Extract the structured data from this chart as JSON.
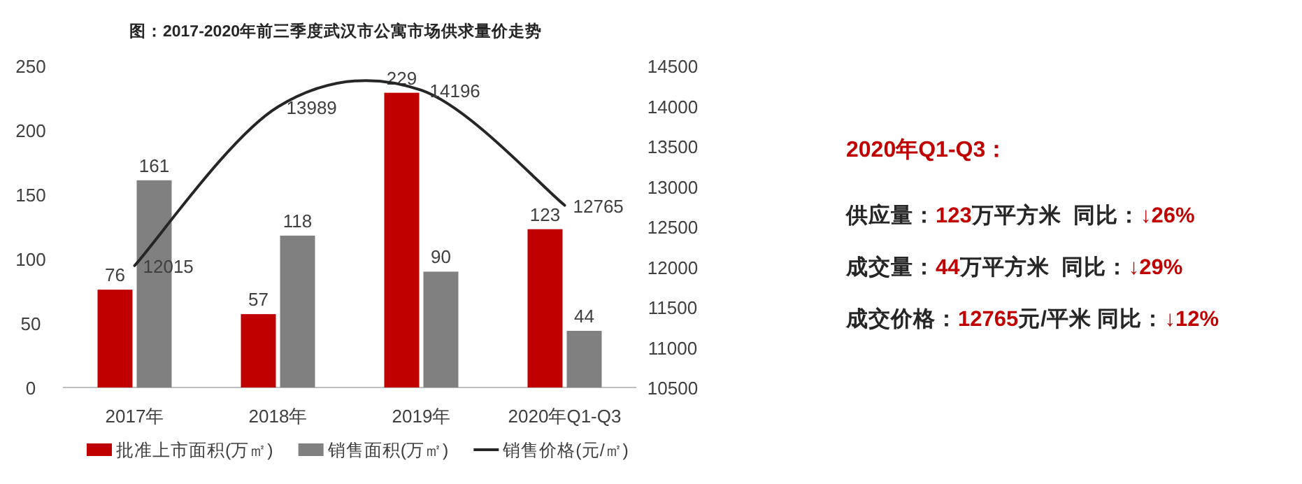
{
  "chart_data": [
    {
      "type": "bar",
      "title": "图：2017-2020年前三季度武汉市公寓市场供求量价走势",
      "categories": [
        "2017年",
        "2018年",
        "2019年",
        "2020年Q1-Q3"
      ],
      "series": [
        {
          "name": "批准上市面积(万㎡)",
          "color": "#c00000",
          "values": [
            76,
            57,
            229,
            123
          ]
        },
        {
          "name": "销售面积(万㎡)",
          "color": "#808080",
          "values": [
            161,
            118,
            90,
            44
          ]
        },
        {
          "name": "销售价格(元/㎡)",
          "type": "line",
          "axis": "y2",
          "color": "#262626",
          "values": [
            12015,
            13989,
            14196,
            12765
          ]
        }
      ],
      "ylim": [
        0,
        250
      ],
      "yticks": [
        0,
        50,
        100,
        150,
        200,
        250
      ],
      "y2lim": [
        10500,
        14500
      ],
      "y2ticks": [
        10500,
        11000,
        11500,
        12000,
        12500,
        13000,
        13500,
        14000,
        14500
      ],
      "data_labels": true,
      "legend": "bottom",
      "grid": false
    },
    {
      "type": "other",
      "title": "2020年Q1-Q3：",
      "annotations": [
        "供应量：123万平方米  同比：↓26%",
        "成交量：44万平方米  同比：↓29%",
        "成交价格：12765元/平米 同比：↓12%"
      ]
    }
  ]
}
